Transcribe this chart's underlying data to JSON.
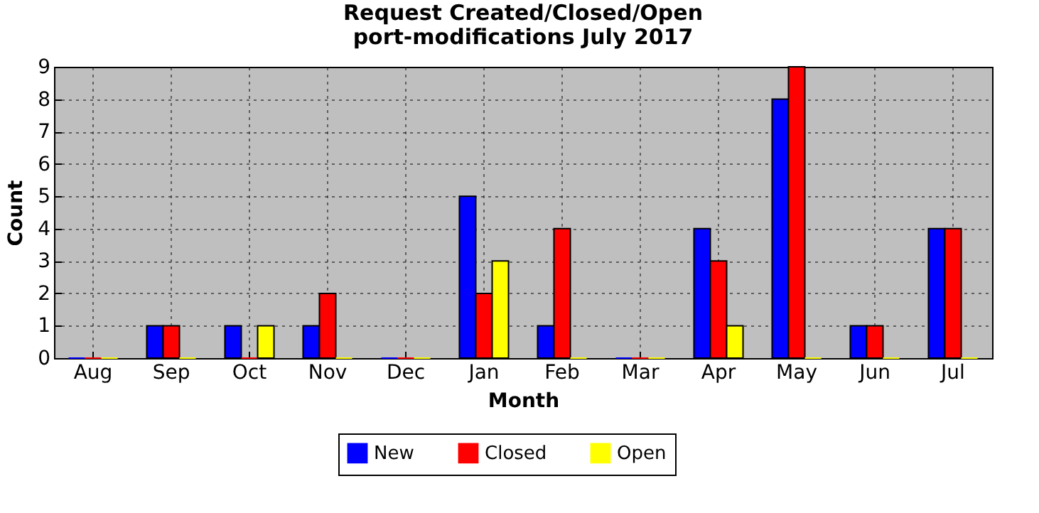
{
  "chart_data": {
    "type": "bar",
    "title": "Request Created/Closed/Open",
    "subtitle": "port-modifications July 2017",
    "xlabel": "Month",
    "ylabel": "Count",
    "categories": [
      "Aug",
      "Sep",
      "Oct",
      "Nov",
      "Dec",
      "Jan",
      "Feb",
      "Mar",
      "Apr",
      "May",
      "Jun",
      "Jul"
    ],
    "series": [
      {
        "name": "New",
        "color": "#0000ff",
        "values": [
          0,
          1,
          1,
          1,
          0,
          5,
          1,
          0,
          4,
          8,
          1,
          4
        ]
      },
      {
        "name": "Closed",
        "color": "#ff0000",
        "values": [
          0,
          1,
          0,
          2,
          0,
          2,
          4,
          0,
          3,
          9,
          1,
          4
        ]
      },
      {
        "name": "Open",
        "color": "#ffff00",
        "values": [
          0,
          0,
          1,
          0,
          0,
          3,
          0,
          0,
          1,
          0,
          0,
          0
        ]
      }
    ],
    "ylim": [
      0,
      9
    ],
    "yticks": [
      0,
      1,
      2,
      3,
      4,
      5,
      6,
      7,
      8,
      9
    ],
    "grid": true,
    "legend": "bottom"
  }
}
